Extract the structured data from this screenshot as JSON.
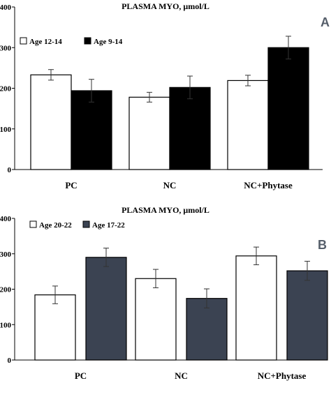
{
  "chart_data": [
    {
      "type": "bar",
      "panel_label": "A",
      "title": "PLASMA MYO, μmol/L",
      "categories": [
        "PC",
        "NC",
        "NC+Phytase"
      ],
      "ylim": [
        0,
        400
      ],
      "yticks": [
        0,
        100,
        200,
        300,
        400
      ],
      "grid": false,
      "legend_position": "top-left",
      "series": [
        {
          "name": "Age 12-14",
          "color": "#ffffff",
          "values": [
            233,
            178,
            219
          ],
          "errors": [
            13,
            12,
            13
          ]
        },
        {
          "name": "Age 9-14",
          "color": "#000000",
          "values": [
            194,
            202,
            300
          ],
          "errors": [
            28,
            28,
            28
          ]
        }
      ]
    },
    {
      "type": "bar",
      "panel_label": "B",
      "title": "PLASMA MYO, μmol/L",
      "categories": [
        "PC",
        "NC",
        "NC+Phytase"
      ],
      "ylim": [
        0,
        400
      ],
      "yticks": [
        0,
        100,
        200,
        300,
        400
      ],
      "grid": false,
      "legend_position": "top-left",
      "series": [
        {
          "name": "Age 20-22",
          "color": "#ffffff",
          "values": [
            184,
            230,
            294
          ],
          "errors": [
            25,
            26,
            25
          ]
        },
        {
          "name": "Age 17-22",
          "color": "#3b4352",
          "values": [
            290,
            174,
            252
          ],
          "errors": [
            26,
            27,
            27
          ]
        }
      ]
    }
  ]
}
